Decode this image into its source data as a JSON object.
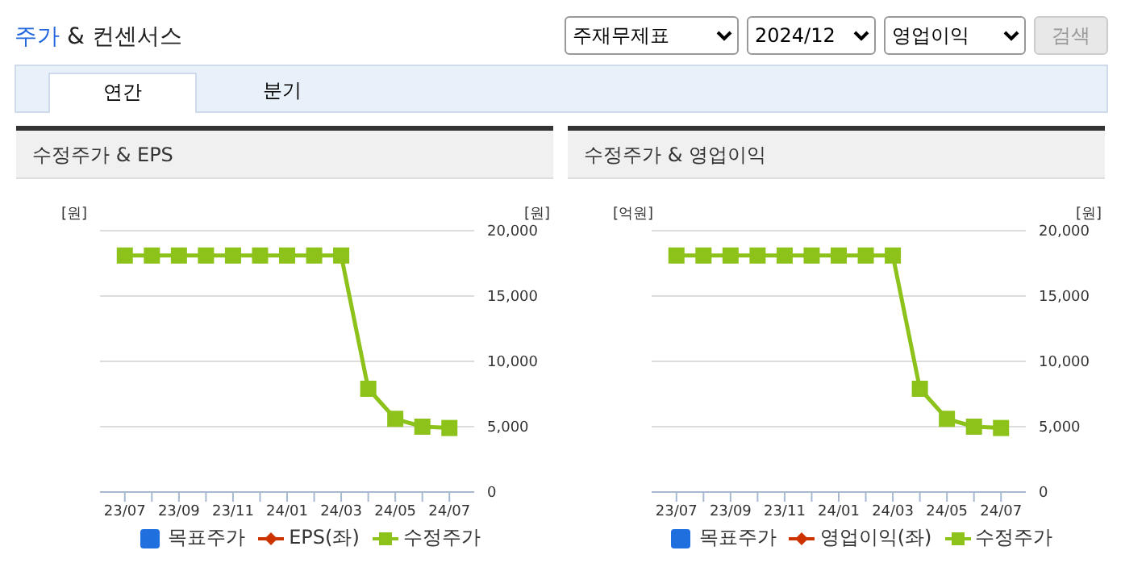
{
  "chart_data": [
    {
      "type": "other",
      "title": "주가 & 컨센서스",
      "annotations": [
        "주재무제표",
        "2024/12",
        "영업이익",
        "검색",
        "연간",
        "분기"
      ]
    },
    {
      "type": "line",
      "title": "수정주가 & EPS",
      "ylabel": "[원]",
      "y2label": "[원]",
      "categories": [
        "23/07",
        null,
        "23/09",
        null,
        "23/11",
        null,
        "24/01",
        null,
        "24/03",
        null,
        "24/05",
        null,
        "24/07"
      ],
      "series": [
        {
          "name": "목표주가",
          "type": "bar",
          "color": "#1f6fde",
          "values": [
            null,
            null,
            null,
            null,
            null,
            null,
            null,
            null,
            null,
            null,
            null,
            null,
            null
          ]
        },
        {
          "name": "EPS(좌)",
          "type": "line",
          "marker": "diamond",
          "color": "#cc3300",
          "values": [
            null,
            null,
            null,
            null,
            null,
            null,
            null,
            null,
            null,
            null,
            null,
            null,
            null
          ]
        },
        {
          "name": "수정주가",
          "type": "line",
          "marker": "square",
          "axis": "y2",
          "color": "#8cc21a",
          "values": [
            18100,
            18100,
            18100,
            18100,
            18100,
            18100,
            18100,
            18100,
            18100,
            7900,
            5600,
            5000,
            4900
          ]
        }
      ],
      "y2lim": [
        0,
        20000
      ],
      "y2ticks": [
        {
          "value": 0,
          "label": "0"
        },
        {
          "value": 5000,
          "label": "5,000"
        },
        {
          "value": 10000,
          "label": "10,000"
        },
        {
          "value": 15000,
          "label": "15,000"
        },
        {
          "value": 20000,
          "label": "20,000"
        }
      ],
      "grid": "y",
      "legend": "bottom"
    },
    {
      "type": "line",
      "title": "수정주가 & 영업이익",
      "ylabel": "[억원]",
      "y2label": "[원]",
      "categories": [
        "23/07",
        null,
        "23/09",
        null,
        "23/11",
        null,
        "24/01",
        null,
        "24/03",
        null,
        "24/05",
        null,
        "24/07"
      ],
      "series": [
        {
          "name": "목표주가",
          "type": "bar",
          "color": "#1f6fde",
          "values": [
            null,
            null,
            null,
            null,
            null,
            null,
            null,
            null,
            null,
            null,
            null,
            null,
            null
          ]
        },
        {
          "name": "영업이익(좌)",
          "type": "line",
          "marker": "diamond",
          "color": "#cc3300",
          "values": [
            null,
            null,
            null,
            null,
            null,
            null,
            null,
            null,
            null,
            null,
            null,
            null,
            null
          ]
        },
        {
          "name": "수정주가",
          "type": "line",
          "marker": "square",
          "axis": "y2",
          "color": "#8cc21a",
          "values": [
            18100,
            18100,
            18100,
            18100,
            18100,
            18100,
            18100,
            18100,
            18100,
            7900,
            5600,
            5000,
            4900
          ]
        }
      ],
      "y2lim": [
        0,
        20000
      ],
      "y2ticks": [
        {
          "value": 0,
          "label": "0"
        },
        {
          "value": 5000,
          "label": "5,000"
        },
        {
          "value": 10000,
          "label": "10,000"
        },
        {
          "value": 15000,
          "label": "15,000"
        },
        {
          "value": 20000,
          "label": "20,000"
        }
      ],
      "grid": "y",
      "legend": "bottom"
    }
  ]
}
